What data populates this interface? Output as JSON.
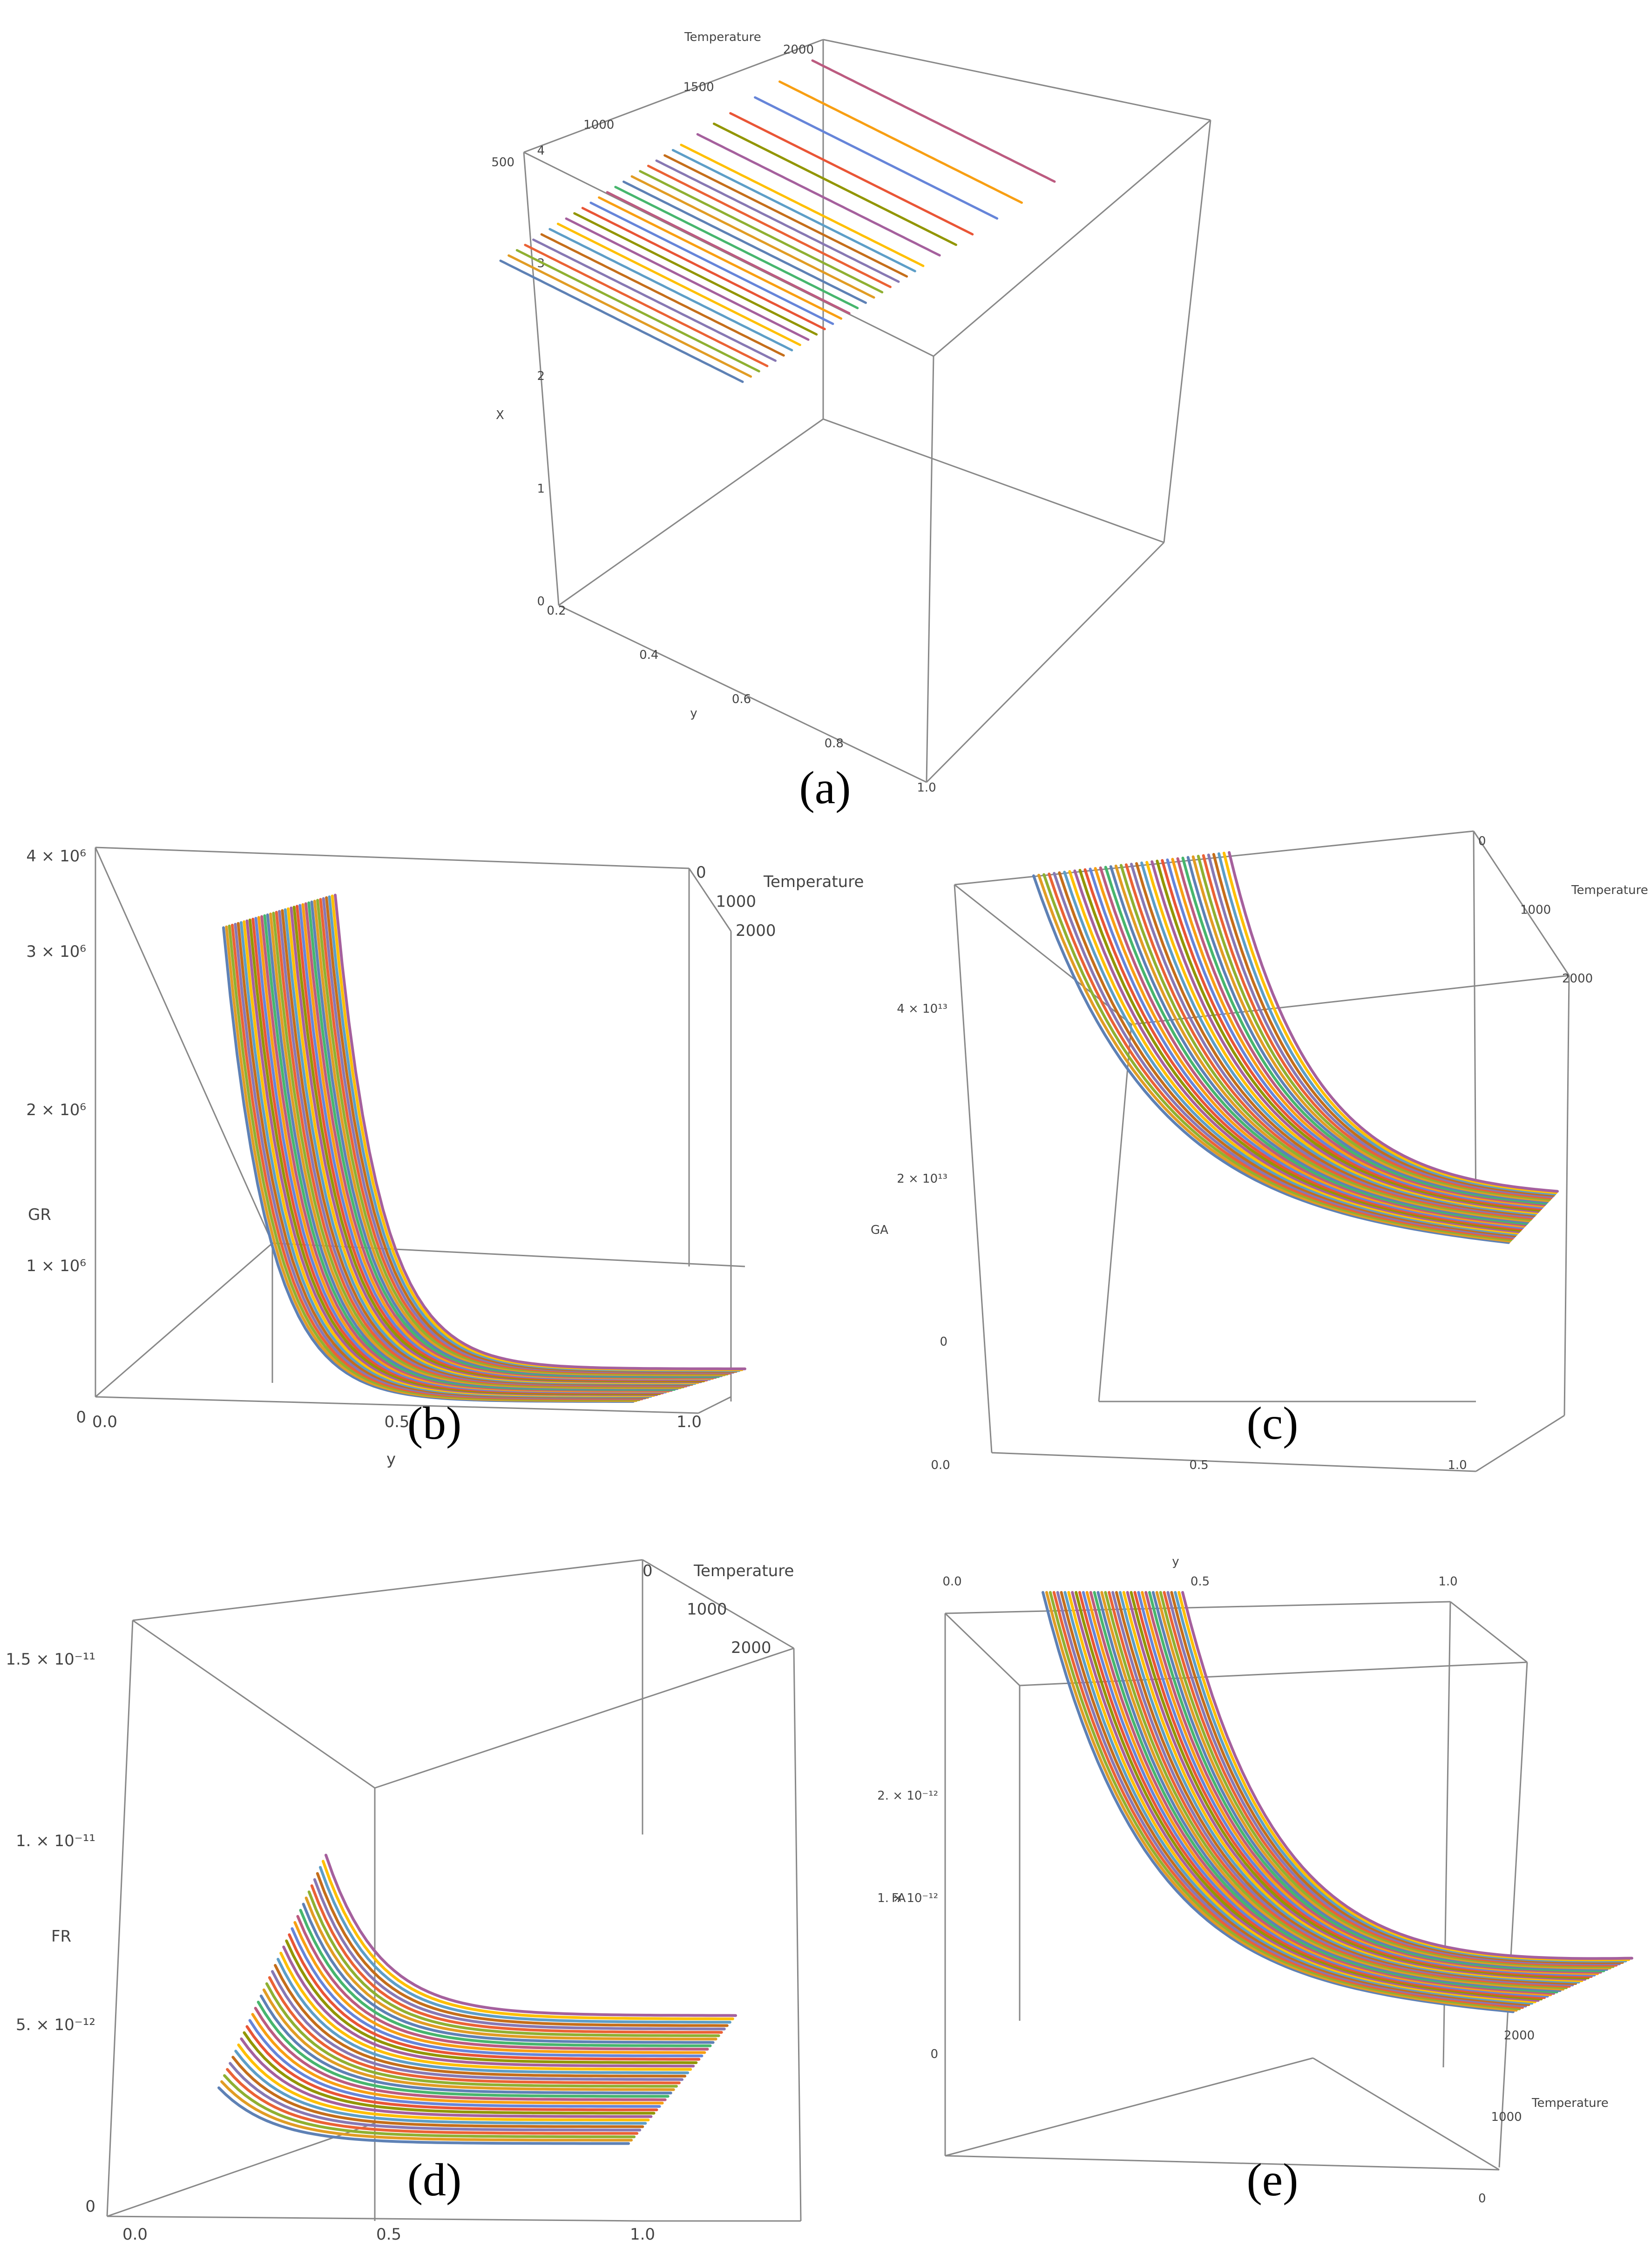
{
  "figure": {
    "colors": [
      "#5e81b5",
      "#e19c24",
      "#8fb032",
      "#eb6235",
      "#8778b3",
      "#c56e1a",
      "#5d9ec7",
      "#ffbf00",
      "#a5609d",
      "#929600",
      "#e95536",
      "#6685d9",
      "#f89f13",
      "#bc5b80",
      "#47b66d"
    ]
  },
  "chart_data": [
    {
      "id": "a",
      "type": "line",
      "view": "3d",
      "panel_label": "(a)",
      "xlabel": "y",
      "ylabel": "Temperature",
      "zlabel": "X",
      "x_ticks": [
        "0.2",
        "0.4",
        "0.6",
        "0.8",
        "1.0"
      ],
      "y_ticks": [
        "500",
        "1000",
        "1500",
        "2000"
      ],
      "z_ticks": [
        "0",
        "1",
        "2",
        "3",
        "4"
      ],
      "xlim": [
        0.15,
        1.0
      ],
      "ylim": [
        0,
        2000
      ],
      "zlim": [
        0,
        4
      ],
      "temperatures": [
        100,
        150,
        200,
        250,
        300,
        350,
        400,
        450,
        500,
        550,
        600,
        650,
        700,
        750,
        800,
        850,
        900,
        950,
        1000,
        1050,
        1100,
        1150,
        1200,
        1300,
        1400,
        1500,
        1650,
        1800,
        2000
      ],
      "model": "constant",
      "value": 3.1
    },
    {
      "id": "b",
      "type": "line",
      "view": "3d",
      "panel_label": "(b)",
      "xlabel": "y",
      "ylabel": "Temperature",
      "zlabel": "GR",
      "x_ticks": [
        "0.0",
        "0.5",
        "1.0"
      ],
      "y_ticks": [
        "0",
        "1000",
        "2000"
      ],
      "z_ticks": [
        "0",
        "1 × 10⁶",
        "2 × 10⁶",
        "3 × 10⁶",
        "4 × 10⁶"
      ],
      "xlim": [
        0,
        1.0
      ],
      "ylim": [
        0,
        2500
      ],
      "zlim": [
        0,
        5000000
      ],
      "temperatures": [
        100,
        150,
        200,
        250,
        300,
        350,
        400,
        450,
        500,
        550,
        600,
        650,
        700,
        750,
        800,
        850,
        900,
        950,
        1000,
        1050,
        1100,
        1150,
        1200,
        1250,
        1300,
        1350,
        1400,
        1450,
        1500,
        1550,
        1600,
        1650,
        1700,
        1750,
        1800,
        1850,
        1900,
        1950,
        2000
      ],
      "model": "exp",
      "amplitude": 4800000,
      "decay": 11,
      "x_start": 0.15
    },
    {
      "id": "c",
      "type": "line",
      "view": "3d",
      "panel_label": "(c)",
      "xlabel": "",
      "ylabel": "Temperature",
      "zlabel": "GA",
      "x_ticks": [
        "0.0",
        "0.5",
        "1.0"
      ],
      "y_ticks": [
        "0",
        "1000",
        "2000"
      ],
      "z_ticks": [
        "0",
        "2 × 10¹³",
        "4 × 10¹³"
      ],
      "xlim": [
        0,
        1.0
      ],
      "ylim": [
        0,
        2500
      ],
      "zlim": [
        -16000000000000.0,
        50000000000000.0
      ],
      "temperatures": [
        100,
        150,
        200,
        250,
        300,
        350,
        400,
        450,
        500,
        550,
        600,
        650,
        700,
        750,
        800,
        850,
        900,
        950,
        1000,
        1050,
        1100,
        1150,
        1200,
        1250,
        1300,
        1350,
        1400,
        1450,
        1500,
        1550,
        1600,
        1650,
        1700,
        1750,
        1800,
        1850,
        1900,
        1950,
        2000
      ],
      "model": "exp",
      "amplitude": 48000000000000.0,
      "decay": 4.5,
      "x_start": 0.12
    },
    {
      "id": "d",
      "type": "line",
      "view": "3d",
      "panel_label": "(d)",
      "xlabel": "",
      "ylabel": "Temperature",
      "zlabel": "FR",
      "x_ticks": [
        "0.0",
        "0.5",
        "1.0"
      ],
      "y_ticks": [
        "0",
        "1000",
        "2000"
      ],
      "z_ticks": [
        "0",
        "5. × 10⁻¹²",
        "1. × 10⁻¹¹",
        "1.5 × 10⁻¹¹"
      ],
      "xlim": [
        0,
        1.0
      ],
      "ylim": [
        0,
        2500
      ],
      "zlim": [
        0,
        1.65e-11
      ],
      "temperatures": [
        100,
        150,
        200,
        250,
        300,
        350,
        400,
        450,
        500,
        550,
        600,
        650,
        700,
        750,
        800,
        850,
        900,
        950,
        1000,
        1050,
        1100,
        1150,
        1200,
        1250,
        1300,
        1350,
        1400,
        1450,
        1500,
        1550,
        1600,
        1650,
        1700,
        1750,
        1800,
        1850,
        1900,
        1950,
        2000
      ],
      "model": "fr",
      "x_start": 0.15
    },
    {
      "id": "e",
      "type": "line",
      "view": "3d",
      "panel_label": "(e)",
      "xlabel": "y",
      "ylabel": "Temperature",
      "zlabel": "FA",
      "x_ticks": [
        "0.0",
        "0.5",
        "1.0"
      ],
      "y_ticks": [
        "0",
        "1000",
        "2000"
      ],
      "z_ticks": [
        "0",
        "1. × 10⁻¹²",
        "2. × 10⁻¹²"
      ],
      "xlim": [
        0,
        1.0
      ],
      "ylim": [
        0,
        2500
      ],
      "zlim": [
        -5e-13,
        2.8e-12
      ],
      "temperatures": [
        100,
        150,
        200,
        250,
        300,
        350,
        400,
        450,
        500,
        550,
        600,
        650,
        700,
        750,
        800,
        850,
        900,
        950,
        1000,
        1050,
        1100,
        1150,
        1200,
        1250,
        1300,
        1350,
        1400,
        1450,
        1500,
        1550,
        1600,
        1650,
        1700,
        1750,
        1800,
        1850,
        1900,
        1950,
        2000
      ],
      "model": "exp",
      "amplitude": 2.8e-12,
      "decay": 5.5,
      "x_start": 0.15
    }
  ]
}
